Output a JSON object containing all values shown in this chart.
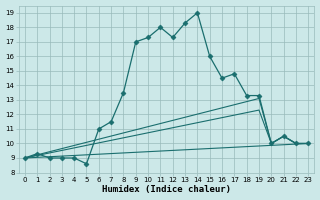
{
  "xlabel": "Humidex (Indice chaleur)",
  "bg_color": "#cce8e8",
  "line_color": "#1a6e6e",
  "grid_color": "#99bbbb",
  "xlim": [
    -0.5,
    23.5
  ],
  "ylim": [
    8,
    19.5
  ],
  "xticks": [
    0,
    1,
    2,
    3,
    4,
    5,
    6,
    7,
    8,
    9,
    10,
    11,
    12,
    13,
    14,
    15,
    16,
    17,
    18,
    19,
    20,
    21,
    22,
    23
  ],
  "yticks": [
    8,
    9,
    10,
    11,
    12,
    13,
    14,
    15,
    16,
    17,
    18,
    19
  ],
  "line1_x": [
    0,
    1,
    2,
    3,
    4,
    5,
    6,
    7,
    8,
    9,
    10,
    11,
    12,
    13,
    14,
    15,
    16,
    17,
    18,
    19,
    20,
    21,
    22,
    23
  ],
  "line1_y": [
    9,
    9.3,
    9,
    9,
    9,
    8.6,
    11,
    11.5,
    13.5,
    17,
    17.3,
    18,
    17.3,
    18.3,
    19,
    16,
    14.5,
    14.8,
    13.3,
    13.3,
    10,
    10.5,
    10,
    10
  ],
  "line2_x": [
    0,
    23
  ],
  "line2_y": [
    9,
    10
  ],
  "line3_x": [
    0,
    19,
    20,
    21,
    22,
    23
  ],
  "line3_y": [
    9,
    12.3,
    10,
    10.5,
    10,
    10
  ],
  "line4_x": [
    0,
    19,
    20,
    21,
    22,
    23
  ],
  "line4_y": [
    9,
    13.1,
    10,
    10.5,
    10,
    10
  ]
}
